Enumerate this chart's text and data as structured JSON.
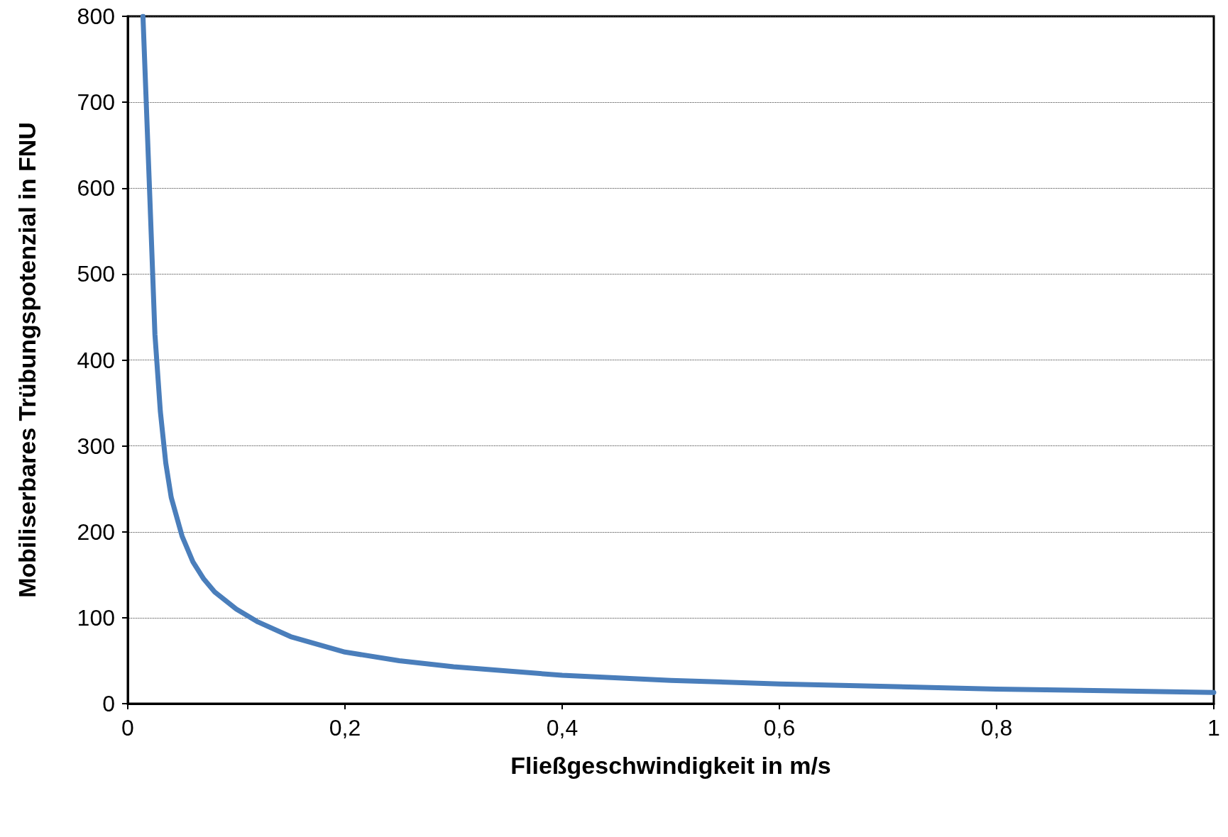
{
  "chart_data": {
    "type": "line",
    "xlabel": "Fließgeschwindigkeit in m/s",
    "ylabel": "Mobiliserbares Trübungspotenzial in FNU",
    "x": [
      0.014,
      0.02,
      0.025,
      0.03,
      0.035,
      0.04,
      0.05,
      0.06,
      0.07,
      0.08,
      0.1,
      0.12,
      0.15,
      0.2,
      0.25,
      0.3,
      0.4,
      0.5,
      0.6,
      0.7,
      0.8,
      0.9,
      1.0
    ],
    "series": [
      {
        "color": "#4a7ebb",
        "values": [
          800,
          600,
          430,
          340,
          280,
          240,
          195,
          165,
          145,
          130,
          110,
          95,
          78,
          60,
          50,
          43,
          33,
          27,
          23,
          20,
          17,
          15,
          13
        ]
      }
    ],
    "xlim": [
      0,
      1
    ],
    "xticks": [
      0,
      {
        "value": 0.2,
        "label": "0,2"
      },
      {
        "value": 0.4,
        "label": "0,4"
      },
      {
        "value": 0.6,
        "label": "0,6"
      },
      {
        "value": 0.8,
        "label": "0,8"
      },
      1
    ],
    "ylim": [
      0,
      800
    ],
    "yticks": [
      0,
      100,
      200,
      300,
      400,
      500,
      600,
      700,
      800
    ],
    "grid": "y",
    "marker": "none",
    "line_style": "solid"
  }
}
